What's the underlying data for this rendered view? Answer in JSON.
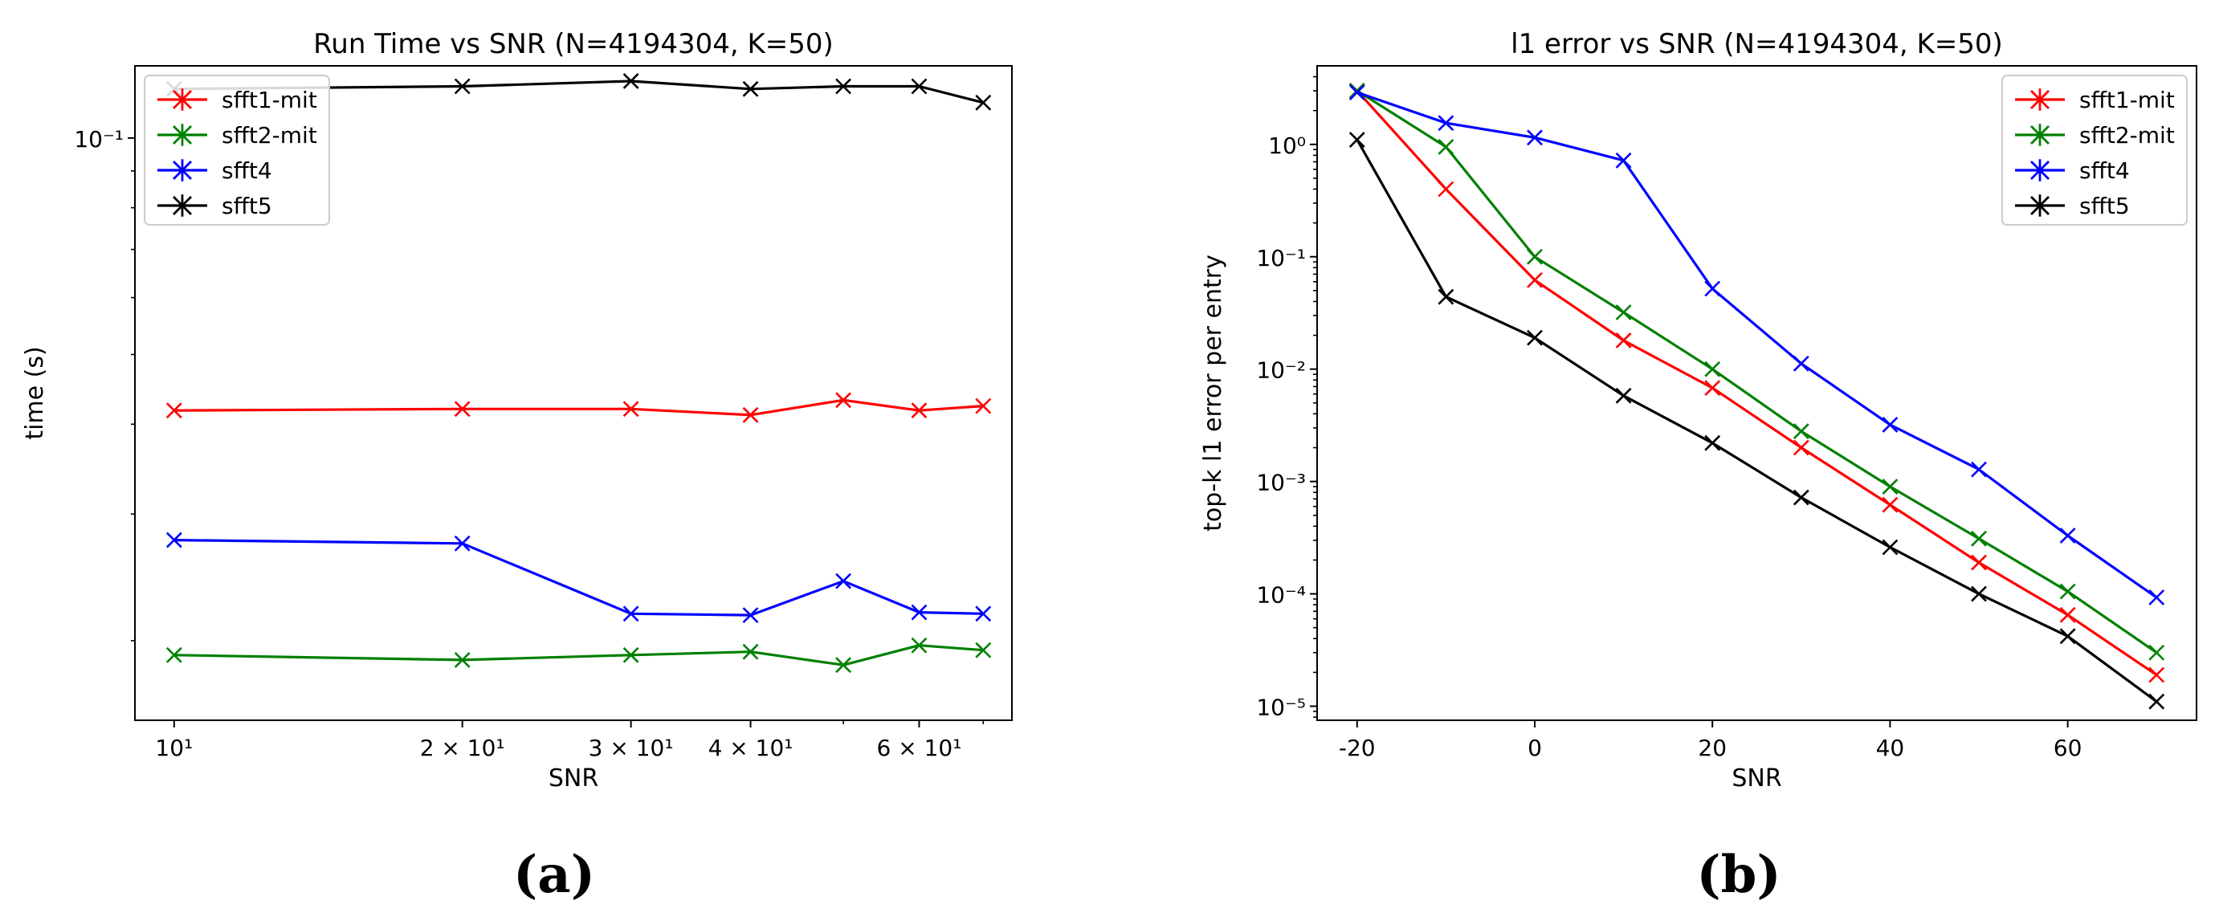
{
  "chart_data": [
    {
      "type": "line",
      "title": "Run Time vs SNR (N=4194304, K=50)",
      "xlabel": "SNR",
      "ylabel": "time (s)",
      "xscale": "log",
      "yscale": "log",
      "xlim": [
        9.1,
        75
      ],
      "ylim": [
        0.0155,
        0.126
      ],
      "xticks": [
        {
          "value": 10,
          "label": "10¹"
        },
        {
          "value": 20,
          "label": "2 × 10¹"
        },
        {
          "value": 30,
          "label": "3 × 10¹"
        },
        {
          "value": 40,
          "label": "4 × 10¹"
        },
        {
          "value": 60,
          "label": "6 × 10¹"
        }
      ],
      "xminor": [
        50,
        70
      ],
      "yticks": [
        {
          "value": 0.1,
          "label": "10⁻¹"
        }
      ],
      "yminor": [
        0.02,
        0.03,
        0.04,
        0.05,
        0.06,
        0.07,
        0.08,
        0.09
      ],
      "legend": "top-left",
      "x": [
        10,
        20,
        30,
        40,
        50,
        60,
        70
      ],
      "series": [
        {
          "name": "sfft1-mit",
          "color": "#ff0000",
          "values": [
            0.0418,
            0.042,
            0.042,
            0.0412,
            0.0432,
            0.0418,
            0.0424
          ]
        },
        {
          "name": "sfft2-mit",
          "color": "#008000",
          "values": [
            0.0191,
            0.0188,
            0.0191,
            0.0193,
            0.0185,
            0.0197,
            0.0194
          ]
        },
        {
          "name": "sfft4",
          "color": "#0000ff",
          "values": [
            0.0276,
            0.0273,
            0.0218,
            0.0217,
            0.0242,
            0.0219,
            0.0218
          ]
        },
        {
          "name": "sfft5",
          "color": "#000000",
          "values": [
            0.117,
            0.118,
            0.12,
            0.117,
            0.118,
            0.118,
            0.112
          ]
        }
      ]
    },
    {
      "type": "line",
      "title": "l1 error vs SNR (N=4194304, K=50)",
      "xlabel": "SNR",
      "ylabel": "top-k l1 error per entry",
      "xscale": "linear",
      "yscale": "log",
      "xlim": [
        -24.5,
        74.5
      ],
      "ylim": [
        7.5e-06,
        5
      ],
      "xticks": [
        {
          "value": -20,
          "label": "-20"
        },
        {
          "value": 0,
          "label": "0"
        },
        {
          "value": 20,
          "label": "20"
        },
        {
          "value": 40,
          "label": "40"
        },
        {
          "value": 60,
          "label": "60"
        }
      ],
      "yticks": [
        {
          "value": 1,
          "label": "10⁰"
        },
        {
          "value": 0.1,
          "label": "10⁻¹"
        },
        {
          "value": 0.01,
          "label": "10⁻²"
        },
        {
          "value": 0.001,
          "label": "10⁻³"
        },
        {
          "value": 0.0001,
          "label": "10⁻⁴"
        },
        {
          "value": 1e-05,
          "label": "10⁻⁵"
        }
      ],
      "legend": "top-right",
      "x": [
        -20,
        -10,
        0,
        10,
        20,
        30,
        40,
        50,
        60,
        70
      ],
      "series": [
        {
          "name": "sfft1-mit",
          "color": "#ff0000",
          "values": [
            3.0,
            0.4,
            0.062,
            0.018,
            0.0068,
            0.002,
            0.00062,
            0.00019,
            6.5e-05,
            1.9e-05
          ]
        },
        {
          "name": "sfft2-mit",
          "color": "#008000",
          "values": [
            3.0,
            0.95,
            0.1,
            0.032,
            0.01,
            0.0028,
            0.0009,
            0.00031,
            0.000105,
            3e-05
          ]
        },
        {
          "name": "sfft4",
          "color": "#0000ff",
          "values": [
            2.9,
            1.55,
            1.15,
            0.72,
            0.052,
            0.0112,
            0.0032,
            0.00128,
            0.00033,
            9.3e-05
          ]
        },
        {
          "name": "sfft5",
          "color": "#000000",
          "values": [
            1.1,
            0.044,
            0.019,
            0.0058,
            0.0022,
            0.00072,
            0.00026,
            0.0001,
            4.2e-05,
            1.1e-05
          ]
        }
      ]
    }
  ],
  "panels": {
    "a_label": "(a)",
    "b_label": "(b)"
  }
}
